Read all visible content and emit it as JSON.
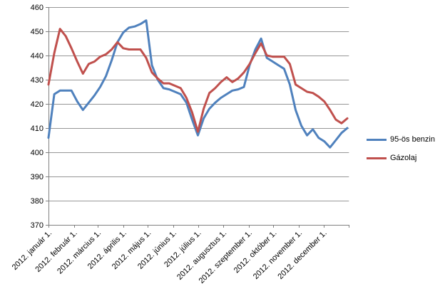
{
  "chart_data": {
    "type": "line",
    "title": "",
    "xlabel": "",
    "ylabel": "",
    "ylim": [
      370,
      460
    ],
    "y_ticks": [
      370,
      380,
      390,
      400,
      410,
      420,
      430,
      440,
      450,
      460
    ],
    "x_tick_labels": [
      "2012. január 1.",
      "2012. február 1.",
      "2012. március 1.",
      "2012. április 1.",
      "2012. május 1.",
      "2012. június 1.",
      "2012. július 1.",
      "2012. augusztus 1.",
      "2012. szeptember 1.",
      "2012. október 1.",
      "2012. november 1.",
      "2012. december 1."
    ],
    "x_frequency": "weekly",
    "grid": "horizontal",
    "legend_position": "right",
    "background_color": "#FFFFFF",
    "grid_color": "#969696",
    "axis_color": "#808080",
    "text_color": "#000000",
    "series": [
      {
        "name": "95-ös benzin",
        "color": "#4F81BD",
        "values": [
          406,
          424,
          425.5,
          425.5,
          425.5,
          421,
          417.5,
          420.5,
          423.5,
          427,
          431.5,
          438,
          445.5,
          449.5,
          451.5,
          452,
          453,
          454.5,
          436,
          430,
          426.5,
          426,
          425,
          424,
          420.5,
          413.5,
          407,
          414,
          418,
          420.5,
          422.5,
          424,
          425.5,
          426,
          427,
          436,
          442.5,
          447,
          439,
          437.5,
          436,
          434.5,
          428,
          417.5,
          411,
          407,
          409.5,
          406,
          404.5,
          402,
          405,
          408,
          410
        ]
      },
      {
        "name": "Gázolaj",
        "color": "#C0504D",
        "values": [
          428,
          441,
          451,
          448,
          443,
          437.5,
          432.5,
          436.5,
          437.5,
          439.5,
          440.5,
          442.5,
          445.5,
          443,
          442.5,
          442.5,
          442.5,
          439,
          433,
          430.5,
          428.5,
          428.5,
          427.5,
          426.5,
          422.5,
          416.5,
          408.5,
          418,
          424.5,
          426.5,
          429,
          431,
          429,
          430.5,
          433,
          436.5,
          441,
          445,
          440,
          439.5,
          439.5,
          439.5,
          436.5,
          428,
          426.5,
          425,
          424.5,
          423,
          421,
          417.5,
          413.5,
          412,
          414
        ]
      }
    ]
  }
}
